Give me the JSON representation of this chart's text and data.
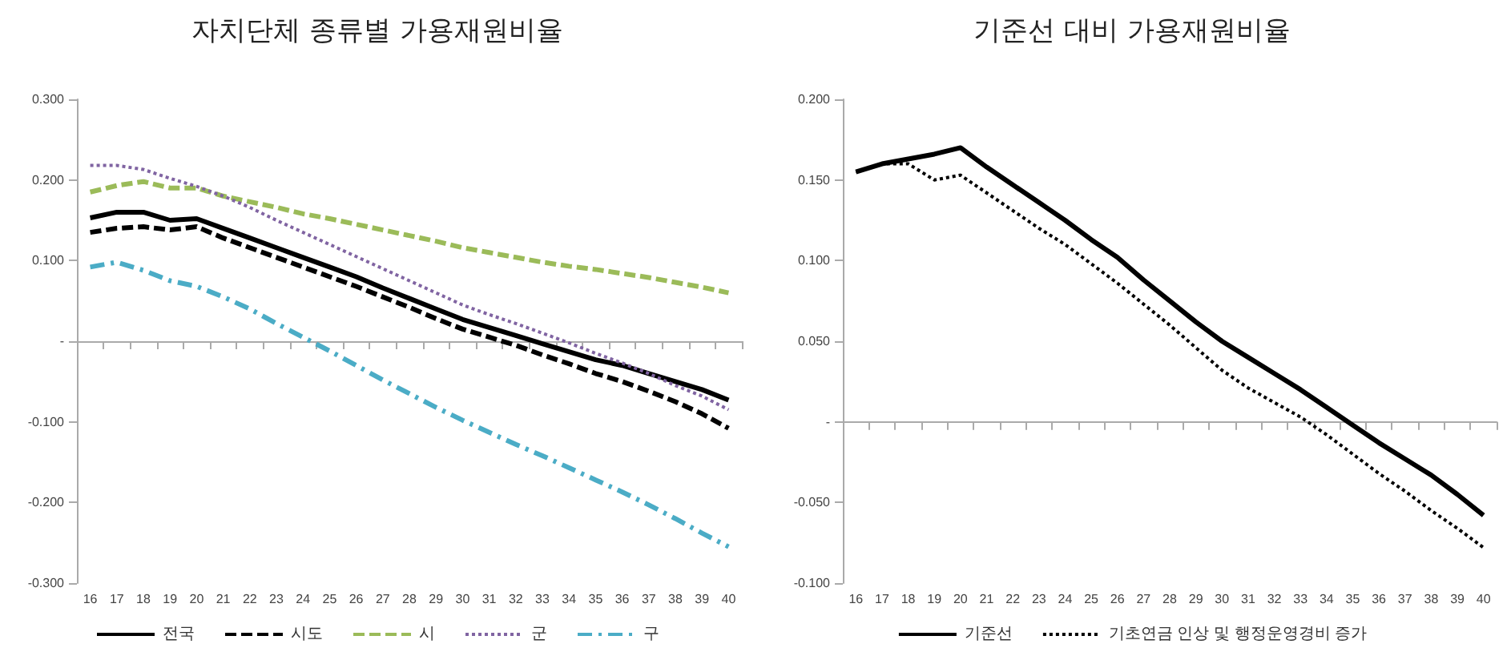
{
  "chart_data": [
    {
      "type": "line",
      "title": "자치단체 종류별 가용재원비율",
      "categories": [
        "16",
        "17",
        "18",
        "19",
        "20",
        "21",
        "22",
        "23",
        "24",
        "25",
        "26",
        "27",
        "28",
        "29",
        "30",
        "31",
        "32",
        "33",
        "34",
        "35",
        "36",
        "37",
        "38",
        "39",
        "40"
      ],
      "series": [
        {
          "name": "전국",
          "color": "#000000",
          "line_style": "solid",
          "values": [
            0.153,
            0.16,
            0.16,
            0.15,
            0.152,
            0.14,
            0.128,
            0.116,
            0.104,
            0.092,
            0.08,
            0.066,
            0.053,
            0.04,
            0.027,
            0.017,
            0.007,
            -0.003,
            -0.013,
            -0.023,
            -0.03,
            -0.04,
            -0.05,
            -0.06,
            -0.073
          ]
        },
        {
          "name": "시도",
          "color": "#000000",
          "line_style": "dashed",
          "values": [
            0.135,
            0.14,
            0.142,
            0.138,
            0.142,
            0.128,
            0.116,
            0.104,
            0.092,
            0.08,
            0.068,
            0.055,
            0.042,
            0.028,
            0.015,
            0.005,
            -0.005,
            -0.017,
            -0.028,
            -0.04,
            -0.05,
            -0.062,
            -0.075,
            -0.09,
            -0.108
          ]
        },
        {
          "name": "시",
          "color": "#9bbb59",
          "line_style": "dashed",
          "values": [
            0.185,
            0.193,
            0.198,
            0.19,
            0.19,
            0.18,
            0.173,
            0.166,
            0.158,
            0.152,
            0.145,
            0.138,
            0.131,
            0.124,
            0.116,
            0.11,
            0.104,
            0.098,
            0.093,
            0.089,
            0.084,
            0.079,
            0.073,
            0.067,
            0.06
          ]
        },
        {
          "name": "군",
          "color": "#8064a2",
          "line_style": "dotted",
          "values": [
            0.218,
            0.218,
            0.213,
            0.202,
            0.192,
            0.18,
            0.166,
            0.15,
            0.135,
            0.12,
            0.105,
            0.09,
            0.075,
            0.06,
            0.045,
            0.033,
            0.022,
            0.01,
            -0.002,
            -0.015,
            -0.027,
            -0.04,
            -0.055,
            -0.068,
            -0.085
          ]
        },
        {
          "name": "구",
          "color": "#4bacc6",
          "line_style": "dashdot",
          "values": [
            0.092,
            0.098,
            0.088,
            0.075,
            0.068,
            0.055,
            0.04,
            0.022,
            0.005,
            -0.012,
            -0.03,
            -0.048,
            -0.065,
            -0.082,
            -0.098,
            -0.113,
            -0.128,
            -0.142,
            -0.157,
            -0.172,
            -0.187,
            -0.203,
            -0.22,
            -0.238,
            -0.255
          ]
        }
      ],
      "ylim": [
        -0.3,
        0.3
      ],
      "yticks": [
        {
          "value": 0.3,
          "label": "0.300"
        },
        {
          "value": 0.2,
          "label": "0.200"
        },
        {
          "value": 0.1,
          "label": "0.100"
        },
        {
          "value": 0,
          "label": "-"
        },
        {
          "value": -0.1,
          "label": "-0.100"
        },
        {
          "value": -0.2,
          "label": "-0.200"
        },
        {
          "value": -0.3,
          "label": "-0.300"
        }
      ],
      "legend": "bottom"
    },
    {
      "type": "line",
      "title": "기준선 대비 가용재원비율",
      "categories": [
        "16",
        "17",
        "18",
        "19",
        "20",
        "21",
        "22",
        "23",
        "24",
        "25",
        "26",
        "27",
        "28",
        "29",
        "30",
        "31",
        "32",
        "33",
        "34",
        "35",
        "36",
        "37",
        "38",
        "39",
        "40"
      ],
      "series": [
        {
          "name": "기준선",
          "color": "#000000",
          "line_style": "solid",
          "values": [
            0.155,
            0.16,
            0.163,
            0.166,
            0.17,
            0.158,
            0.147,
            0.136,
            0.125,
            0.113,
            0.102,
            0.088,
            0.075,
            0.062,
            0.05,
            0.04,
            0.03,
            0.02,
            0.009,
            -0.002,
            -0.013,
            -0.023,
            -0.033,
            -0.045,
            -0.058
          ]
        },
        {
          "name": "기초연금 인상 및 행정운영경비 증가",
          "color": "#000000",
          "line_style": "dotted",
          "values": [
            0.155,
            0.16,
            0.16,
            0.15,
            0.153,
            0.142,
            0.131,
            0.12,
            0.11,
            0.098,
            0.086,
            0.073,
            0.06,
            0.046,
            0.032,
            0.021,
            0.012,
            0.003,
            -0.008,
            -0.02,
            -0.032,
            -0.043,
            -0.055,
            -0.066,
            -0.078
          ]
        }
      ],
      "ylim": [
        -0.1,
        0.2
      ],
      "yticks": [
        {
          "value": 0.2,
          "label": "0.200"
        },
        {
          "value": 0.15,
          "label": "0.150"
        },
        {
          "value": 0.1,
          "label": "0.100"
        },
        {
          "value": 0.05,
          "label": "0.050"
        },
        {
          "value": 0,
          "label": "-"
        },
        {
          "value": -0.05,
          "label": "-0.050"
        },
        {
          "value": -0.1,
          "label": "-0.100"
        }
      ],
      "legend": "bottom"
    }
  ]
}
